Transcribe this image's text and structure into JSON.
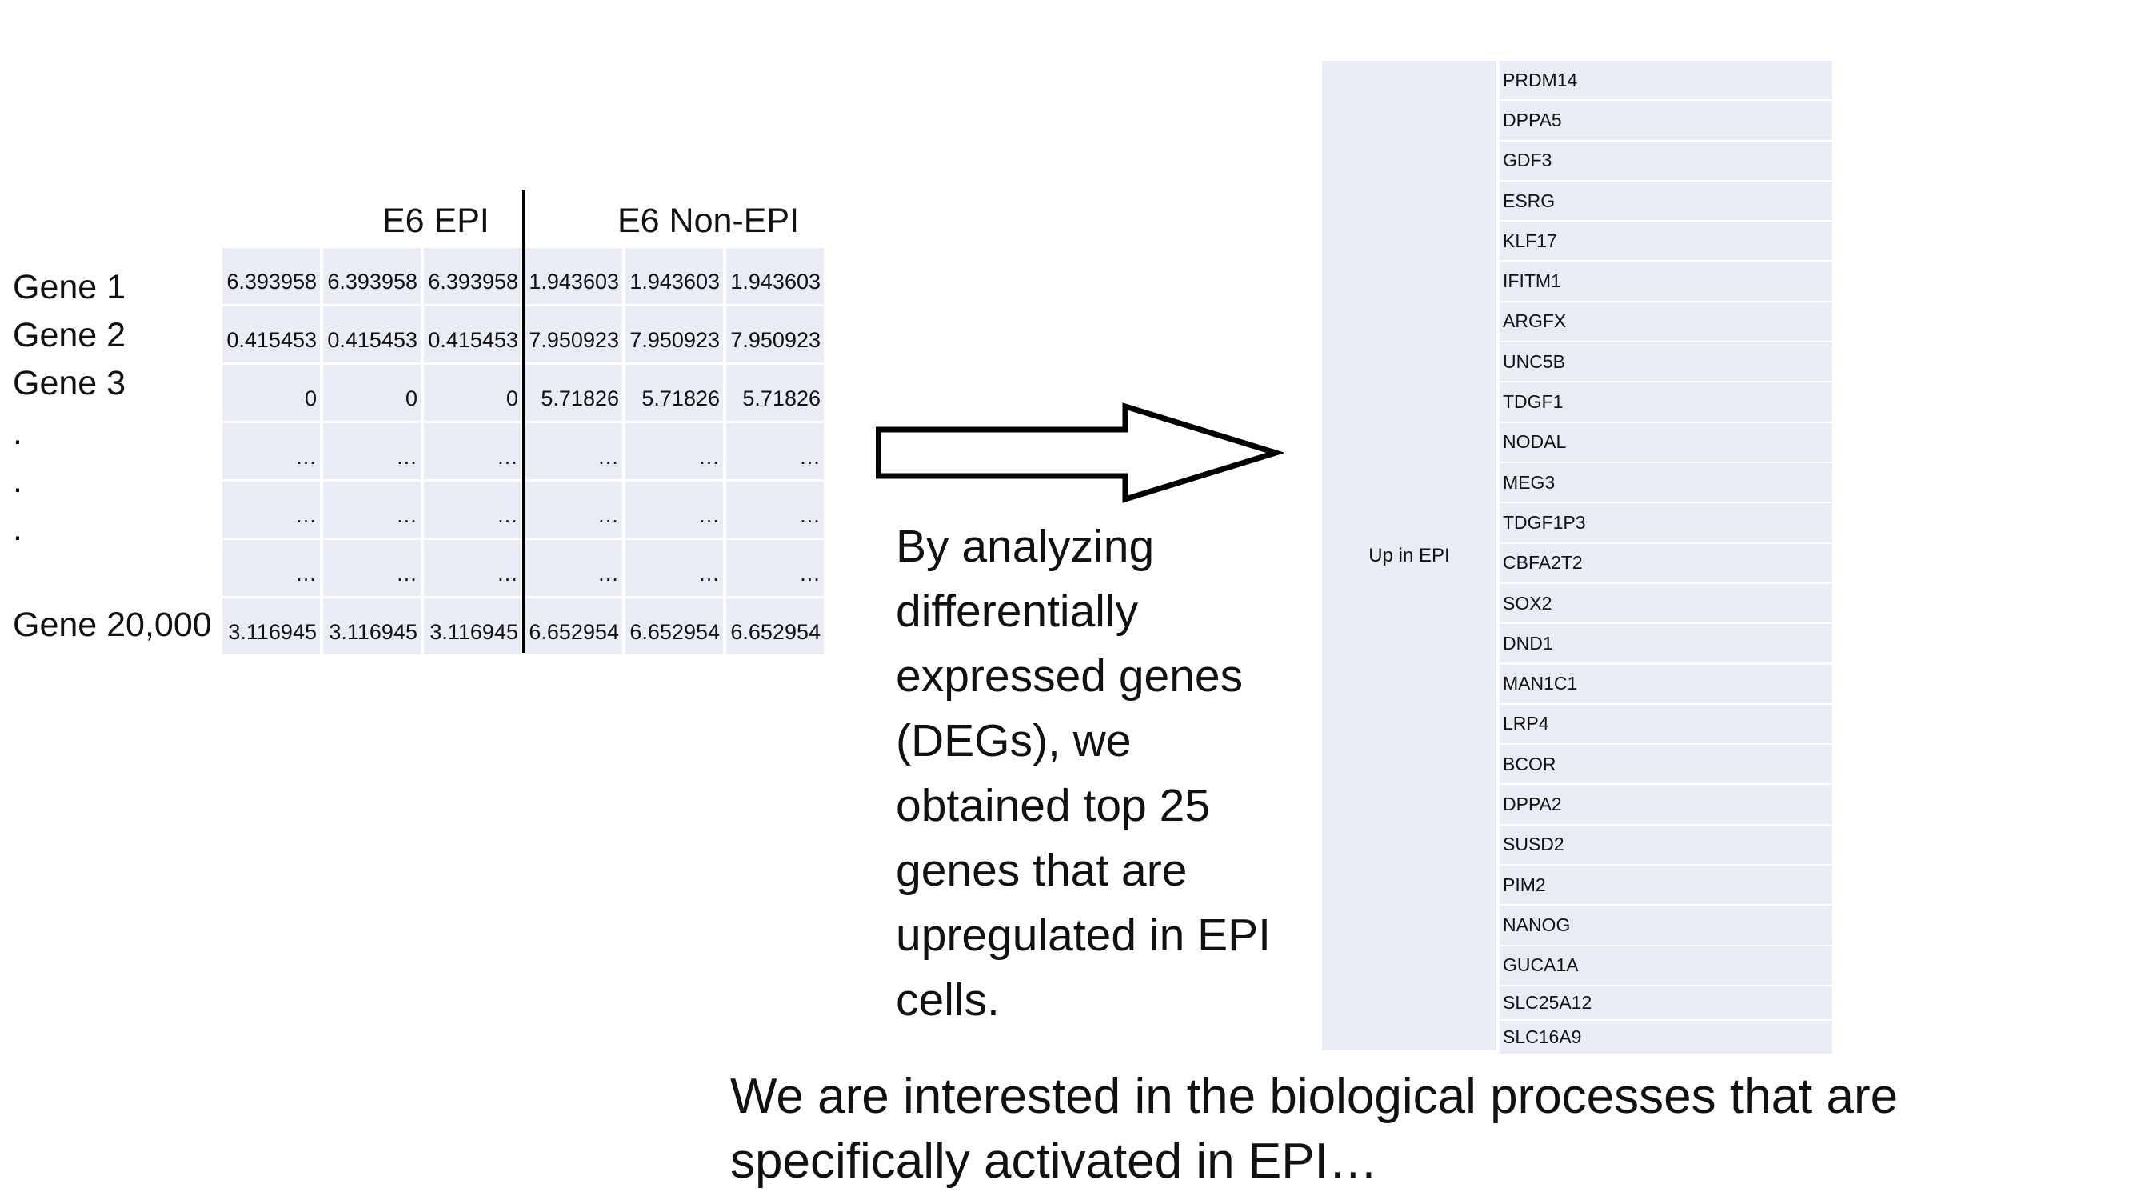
{
  "matrix": {
    "group_headers": [
      "E6 EPI",
      "E6 Non-EPI"
    ],
    "row_labels": [
      "Gene 1",
      "Gene 2",
      "Gene 3",
      ".",
      ".",
      ".",
      "Gene 20,000"
    ],
    "rows": [
      [
        "6.393958",
        "6.393958",
        "6.393958",
        "1.943603",
        "1.943603",
        "1.943603"
      ],
      [
        "0.415453",
        "0.415453",
        "0.415453",
        "7.950923",
        "7.950923",
        "7.950923"
      ],
      [
        "0",
        "0",
        "0",
        "5.71826",
        "5.71826",
        "5.71826"
      ],
      [
        "…",
        "…",
        "…",
        "…",
        "…",
        "…"
      ],
      [
        "…",
        "…",
        "…",
        "…",
        "…",
        "…"
      ],
      [
        "…",
        "…",
        "…",
        "…",
        "…",
        "…"
      ],
      [
        "3.116945",
        "3.116945",
        "3.116945",
        "6.652954",
        "6.652954",
        "6.652954"
      ]
    ]
  },
  "description": "By analyzing differentially expressed genes (DEGs), we obtained top 25 genes that are upregulated in EPI cells.",
  "gene_table": {
    "group_label": "Up in EPI",
    "genes": [
      "PRDM14",
      "DPPA5",
      "GDF3",
      "ESRG",
      "KLF17",
      "IFITM1",
      "ARGFX",
      "UNC5B",
      "TDGF1",
      "NODAL",
      "MEG3",
      "TDGF1P3",
      "CBFA2T2",
      "SOX2",
      "DND1",
      "MAN1C1",
      "LRP4",
      "BCOR",
      "DPPA2",
      "SUSD2",
      "PIM2",
      "NANOG",
      "GUCA1A",
      "SLC25A12",
      "SLC16A9"
    ]
  },
  "footer": "We are interested in the biological processes that are specifically activated in EPI…",
  "colors": {
    "cell_fill": "#e9ebf5",
    "text": "#111111",
    "divider": "#000000"
  }
}
